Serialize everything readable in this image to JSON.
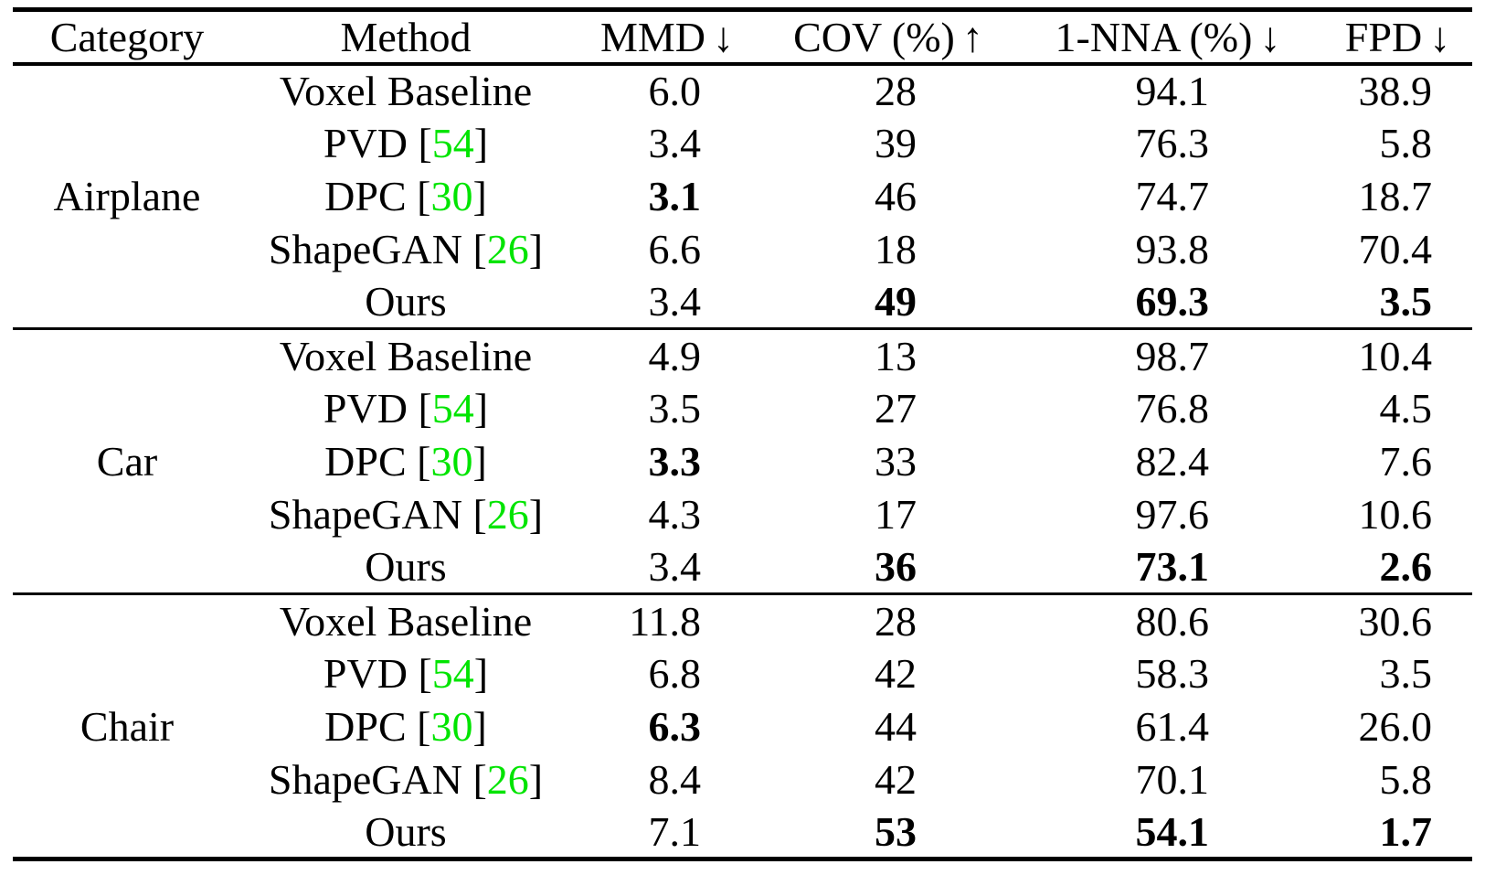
{
  "colors": {
    "citation_green": "#00e400",
    "text": "#000000",
    "background": "#ffffff"
  },
  "table": {
    "citation_brackets": {
      "open": "[",
      "close": "]"
    },
    "columns": [
      {
        "key": "category",
        "label": "Category",
        "arrow": ""
      },
      {
        "key": "method",
        "label": "Method",
        "arrow": ""
      },
      {
        "key": "mmd",
        "label": "MMD",
        "arrow": "↓"
      },
      {
        "key": "cov",
        "label": "COV (%)",
        "arrow": "↑"
      },
      {
        "key": "nna",
        "label": "1-NNA (%)",
        "arrow": "↓"
      },
      {
        "key": "fpd",
        "label": "FPD",
        "arrow": "↓"
      }
    ],
    "sections": [
      {
        "category": "Airplane",
        "rows": [
          {
            "method": "Voxel Baseline",
            "cite": "",
            "mmd": {
              "v": "6.0",
              "b": false
            },
            "cov": {
              "v": "28",
              "b": false
            },
            "nna": {
              "v": "94.1",
              "b": false
            },
            "fpd": {
              "v": "38.9",
              "b": false
            }
          },
          {
            "method": "PVD",
            "cite": "54",
            "mmd": {
              "v": "3.4",
              "b": false
            },
            "cov": {
              "v": "39",
              "b": false
            },
            "nna": {
              "v": "76.3",
              "b": false
            },
            "fpd": {
              "v": "5.8",
              "b": false
            }
          },
          {
            "method": "DPC",
            "cite": "30",
            "mmd": {
              "v": "3.1",
              "b": true
            },
            "cov": {
              "v": "46",
              "b": false
            },
            "nna": {
              "v": "74.7",
              "b": false
            },
            "fpd": {
              "v": "18.7",
              "b": false
            }
          },
          {
            "method": "ShapeGAN",
            "cite": "26",
            "mmd": {
              "v": "6.6",
              "b": false
            },
            "cov": {
              "v": "18",
              "b": false
            },
            "nna": {
              "v": "93.8",
              "b": false
            },
            "fpd": {
              "v": "70.4",
              "b": false
            }
          },
          {
            "method": "Ours",
            "cite": "",
            "mmd": {
              "v": "3.4",
              "b": false
            },
            "cov": {
              "v": "49",
              "b": true
            },
            "nna": {
              "v": "69.3",
              "b": true
            },
            "fpd": {
              "v": "3.5",
              "b": true
            }
          }
        ]
      },
      {
        "category": "Car",
        "rows": [
          {
            "method": "Voxel Baseline",
            "cite": "",
            "mmd": {
              "v": "4.9",
              "b": false
            },
            "cov": {
              "v": "13",
              "b": false
            },
            "nna": {
              "v": "98.7",
              "b": false
            },
            "fpd": {
              "v": "10.4",
              "b": false
            }
          },
          {
            "method": "PVD",
            "cite": "54",
            "mmd": {
              "v": "3.5",
              "b": false
            },
            "cov": {
              "v": "27",
              "b": false
            },
            "nna": {
              "v": "76.8",
              "b": false
            },
            "fpd": {
              "v": "4.5",
              "b": false
            }
          },
          {
            "method": "DPC",
            "cite": "30",
            "mmd": {
              "v": "3.3",
              "b": true
            },
            "cov": {
              "v": "33",
              "b": false
            },
            "nna": {
              "v": "82.4",
              "b": false
            },
            "fpd": {
              "v": "7.6",
              "b": false
            }
          },
          {
            "method": "ShapeGAN",
            "cite": "26",
            "mmd": {
              "v": "4.3",
              "b": false
            },
            "cov": {
              "v": "17",
              "b": false
            },
            "nna": {
              "v": "97.6",
              "b": false
            },
            "fpd": {
              "v": "10.6",
              "b": false
            }
          },
          {
            "method": "Ours",
            "cite": "",
            "mmd": {
              "v": "3.4",
              "b": false
            },
            "cov": {
              "v": "36",
              "b": true
            },
            "nna": {
              "v": "73.1",
              "b": true
            },
            "fpd": {
              "v": "2.6",
              "b": true
            }
          }
        ]
      },
      {
        "category": "Chair",
        "rows": [
          {
            "method": "Voxel Baseline",
            "cite": "",
            "mmd": {
              "v": "11.8",
              "b": false
            },
            "cov": {
              "v": "28",
              "b": false
            },
            "nna": {
              "v": "80.6",
              "b": false
            },
            "fpd": {
              "v": "30.6",
              "b": false
            }
          },
          {
            "method": "PVD",
            "cite": "54",
            "mmd": {
              "v": "6.8",
              "b": false
            },
            "cov": {
              "v": "42",
              "b": false
            },
            "nna": {
              "v": "58.3",
              "b": false
            },
            "fpd": {
              "v": "3.5",
              "b": false
            }
          },
          {
            "method": "DPC",
            "cite": "30",
            "mmd": {
              "v": "6.3",
              "b": true
            },
            "cov": {
              "v": "44",
              "b": false
            },
            "nna": {
              "v": "61.4",
              "b": false
            },
            "fpd": {
              "v": "26.0",
              "b": false
            }
          },
          {
            "method": "ShapeGAN",
            "cite": "26",
            "mmd": {
              "v": "8.4",
              "b": false
            },
            "cov": {
              "v": "42",
              "b": false
            },
            "nna": {
              "v": "70.1",
              "b": false
            },
            "fpd": {
              "v": "5.8",
              "b": false
            }
          },
          {
            "method": "Ours",
            "cite": "",
            "mmd": {
              "v": "7.1",
              "b": false
            },
            "cov": {
              "v": "53",
              "b": true
            },
            "nna": {
              "v": "54.1",
              "b": true
            },
            "fpd": {
              "v": "1.7",
              "b": true
            }
          }
        ]
      }
    ]
  }
}
